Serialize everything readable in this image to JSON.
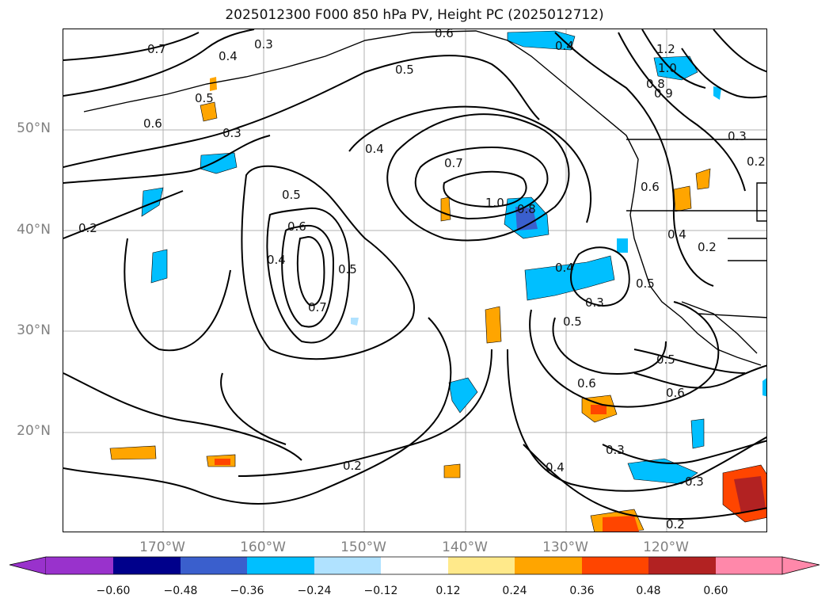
{
  "title": "2025012300 F000 850 hPa PV, Height PC (2025012712)",
  "map": {
    "lat_labels": [
      "50°N",
      "40°N",
      "30°N",
      "20°N"
    ],
    "lon_labels": [
      "170°W",
      "160°W",
      "150°W",
      "140°W",
      "130°W",
      "120°W"
    ],
    "contour_labels": [
      "0.7",
      "0.4",
      "0.3",
      "0.6",
      "0.5",
      "0.4",
      "1.2",
      "1.0",
      "0.8",
      "0.9",
      "0.5",
      "0.6",
      "0.3",
      "0.4",
      "0.5",
      "0.7",
      "1.0",
      "0.8",
      "0.2",
      "0.6",
      "0.4",
      "0.5",
      "0.7",
      "0.6",
      "0.4",
      "0.3",
      "0.5",
      "0.5",
      "0.6",
      "0.5",
      "0.6",
      "0.3",
      "0.4",
      "0.3",
      "0.2",
      "0.2",
      "0.2",
      "0.3",
      "0.4",
      "0.2"
    ]
  },
  "colorbar": {
    "ticks": [
      "−0.60",
      "−0.48",
      "−0.36",
      "−0.24",
      "−0.12",
      "0.12",
      "0.24",
      "0.36",
      "0.48",
      "0.60"
    ],
    "colors": [
      "#9932cc",
      "#00008b",
      "#3a5fcd",
      "#00bfff",
      "#b0e2ff",
      "#ffffff",
      "#ffe98a",
      "#ffa500",
      "#ff4500",
      "#b22222",
      "#ff88aa"
    ]
  }
}
